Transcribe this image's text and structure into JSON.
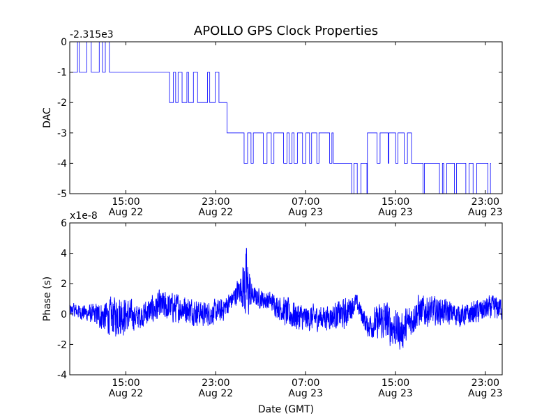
{
  "figure": {
    "title": "APOLLO GPS Clock Properties"
  },
  "chart_data": [
    {
      "type": "line",
      "title": "APOLLO GPS Clock Properties",
      "ylabel": "DAC",
      "xlabel": "",
      "offset_text": "-2.315e3",
      "xlim": [
        "2014-08-22 10:00",
        "2014-08-24 00:30"
      ],
      "ylim": [
        -5,
        0
      ],
      "yticks": [
        -5,
        -4,
        -3,
        -2,
        -1,
        0
      ],
      "xticks": [
        {
          "t": "2014-08-22 15:00",
          "time": "15:00",
          "date": "Aug 22"
        },
        {
          "t": "2014-08-22 23:00",
          "time": "23:00",
          "date": "Aug 22"
        },
        {
          "t": "2014-08-23 07:00",
          "time": "07:00",
          "date": "Aug 23"
        },
        {
          "t": "2014-08-23 15:00",
          "time": "15:00",
          "date": "Aug 23"
        },
        {
          "t": "2014-08-23 23:00",
          "time": "23:00",
          "date": "Aug 23"
        }
      ],
      "grid": false,
      "color": "#0000ff",
      "levels": [
        {
          "start": "2014-08-22 10:00",
          "end": "2014-08-22 14:00",
          "base": -1,
          "alt": 0
        },
        {
          "start": "2014-08-22 14:00",
          "end": "2014-08-22 16:30",
          "base": -1,
          "alt": -1
        },
        {
          "start": "2014-08-22 16:30",
          "end": "2014-08-22 18:00",
          "base": -1,
          "alt": -1
        },
        {
          "start": "2014-08-22 18:00",
          "end": "2014-08-22 20:00",
          "base": -1,
          "alt": -2
        },
        {
          "start": "2014-08-22 20:00",
          "end": "2014-08-22 23:30",
          "base": -2,
          "alt": -1
        },
        {
          "start": "2014-08-22 23:30",
          "end": "2014-08-23 00:00",
          "base": -2,
          "alt": -2
        },
        {
          "start": "2014-08-23 00:00",
          "end": "2014-08-23 01:00",
          "base": -3,
          "alt": -3
        },
        {
          "start": "2014-08-23 01:00",
          "end": "2014-08-23 09:30",
          "base": -3,
          "alt": -4
        },
        {
          "start": "2014-08-23 09:30",
          "end": "2014-08-23 10:45",
          "base": -4,
          "alt": -4
        },
        {
          "start": "2014-08-23 10:45",
          "end": "2014-08-23 12:30",
          "base": -4,
          "alt": -5
        },
        {
          "start": "2014-08-23 12:30",
          "end": "2014-08-23 16:30",
          "base": -3,
          "alt": -4
        },
        {
          "start": "2014-08-23 16:30",
          "end": "2014-08-23 18:00",
          "base": -4,
          "alt": -5
        },
        {
          "start": "2014-08-23 18:00",
          "end": "2014-08-23 23:30",
          "base": -4,
          "alt": -5
        }
      ]
    },
    {
      "type": "line",
      "ylabel": "Phase (s)",
      "xlabel": "Date (GMT)",
      "offset_text": "x1e-8",
      "xlim": [
        "2014-08-22 10:00",
        "2014-08-24 00:30"
      ],
      "ylim": [
        -4,
        6
      ],
      "yticks": [
        -4,
        -2,
        0,
        2,
        4,
        6
      ],
      "xticks": [
        {
          "t": "2014-08-22 15:00",
          "time": "15:00",
          "date": "Aug 22"
        },
        {
          "t": "2014-08-22 23:00",
          "time": "23:00",
          "date": "Aug 22"
        },
        {
          "t": "2014-08-23 07:00",
          "time": "07:00",
          "date": "Aug 23"
        },
        {
          "t": "2014-08-23 15:00",
          "time": "15:00",
          "date": "Aug 23"
        },
        {
          "t": "2014-08-23 23:00",
          "time": "23:00",
          "date": "Aug 23"
        }
      ],
      "grid": false,
      "color": "#0000ff",
      "envelope": [
        {
          "t": "2014-08-22 10:00",
          "mean": 0.3,
          "amp": 0.5
        },
        {
          "t": "2014-08-22 12:00",
          "mean": 0.0,
          "amp": 0.8
        },
        {
          "t": "2014-08-22 13:30",
          "mean": -0.2,
          "amp": 1.5
        },
        {
          "t": "2014-08-22 14:30",
          "mean": 0.0,
          "amp": 1.8
        },
        {
          "t": "2014-08-22 16:00",
          "mean": -0.2,
          "amp": 1.0
        },
        {
          "t": "2014-08-22 18:00",
          "mean": 0.5,
          "amp": 1.3
        },
        {
          "t": "2014-08-22 20:00",
          "mean": 0.4,
          "amp": 1.2
        },
        {
          "t": "2014-08-22 22:00",
          "mean": 0.0,
          "amp": 1.0
        },
        {
          "t": "2014-08-22 23:30",
          "mean": 0.2,
          "amp": 1.0
        },
        {
          "t": "2014-08-23 00:30",
          "mean": 1.0,
          "amp": 0.8
        },
        {
          "t": "2014-08-23 01:15",
          "mean": 1.8,
          "amp": 1.2
        },
        {
          "t": "2014-08-23 01:40",
          "mean": 1.8,
          "amp": 3.5
        },
        {
          "t": "2014-08-23 02:15",
          "mean": 1.2,
          "amp": 0.8
        },
        {
          "t": "2014-08-23 04:00",
          "mean": 0.8,
          "amp": 0.8
        },
        {
          "t": "2014-08-23 05:30",
          "mean": 0.0,
          "amp": 1.3
        },
        {
          "t": "2014-08-23 07:00",
          "mean": -0.3,
          "amp": 1.1
        },
        {
          "t": "2014-08-23 09:00",
          "mean": -0.2,
          "amp": 1.0
        },
        {
          "t": "2014-08-23 10:30",
          "mean": 0.0,
          "amp": 1.3
        },
        {
          "t": "2014-08-23 11:30",
          "mean": 0.8,
          "amp": 0.7
        },
        {
          "t": "2014-08-23 12:30",
          "mean": -0.8,
          "amp": 0.9
        },
        {
          "t": "2014-08-23 14:00",
          "mean": -0.4,
          "amp": 1.8
        },
        {
          "t": "2014-08-23 15:30",
          "mean": -1.2,
          "amp": 1.5
        },
        {
          "t": "2014-08-23 17:00",
          "mean": 0.2,
          "amp": 1.4
        },
        {
          "t": "2014-08-23 19:00",
          "mean": 0.2,
          "amp": 1.1
        },
        {
          "t": "2014-08-23 21:00",
          "mean": -0.1,
          "amp": 0.9
        },
        {
          "t": "2014-08-23 23:30",
          "mean": 0.4,
          "amp": 1.0
        }
      ]
    }
  ]
}
